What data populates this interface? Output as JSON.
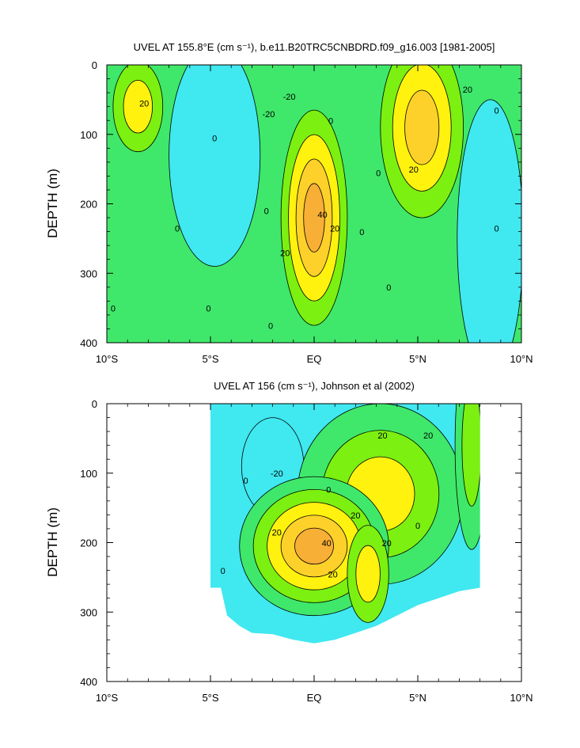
{
  "colors": {
    "level_neg": "#40e8f0",
    "level_zero": "#3fe86a",
    "level_10": "#7cf010",
    "level_20": "#fff20e",
    "level_30": "#fdd12a",
    "level_40": "#f8af36",
    "line": "#000000"
  },
  "chart_data": [
    {
      "type": "contour",
      "title": "UVEL AT 155.8°E (cm s⁻¹), b.e11.B20TRC5CNBDRD.f09_g16.003 [1981-2005]",
      "xlabel": "",
      "ylabel": "DEPTH (m)",
      "x_ticks": [
        "10°S",
        "5°S",
        "EQ",
        "5°N",
        "10°N"
      ],
      "x_tick_values": [
        -10,
        -5,
        0,
        5,
        10
      ],
      "y_ticks": [
        "0",
        "100",
        "200",
        "300",
        "400"
      ],
      "y_tick_values": [
        0,
        100,
        200,
        300,
        400
      ],
      "xlim": [
        -10,
        10
      ],
      "ylim": [
        400,
        0
      ],
      "background_level": "zero",
      "features": [
        {
          "lat": -8.5,
          "depth": 60,
          "dlat": 1.2,
          "ddepth": 65,
          "levels": [
            "10",
            "20"
          ]
        },
        {
          "lat": -4.8,
          "depth": 130,
          "dlat": 2.2,
          "ddepth": 160,
          "levels": [
            "neg"
          ]
        },
        {
          "lat": 0,
          "depth": 220,
          "dlat": 1.6,
          "ddepth": 155,
          "levels": [
            "10",
            "20",
            "30",
            "40"
          ]
        },
        {
          "lat": 5.2,
          "depth": 90,
          "dlat": 2.0,
          "ddepth": 130,
          "levels": [
            "10",
            "20",
            "30"
          ]
        },
        {
          "lat": 8.5,
          "depth": 250,
          "dlat": 1.6,
          "ddepth": 200,
          "levels": [
            "neg"
          ]
        }
      ],
      "contour_labels": [
        {
          "lat": -8.2,
          "depth": 60,
          "text": "20"
        },
        {
          "lat": -4.8,
          "depth": 110,
          "text": "0"
        },
        {
          "lat": -6.6,
          "depth": 240,
          "text": "0"
        },
        {
          "lat": -2.2,
          "depth": 75,
          "text": "-20"
        },
        {
          "lat": -1.2,
          "depth": 50,
          "text": "-20"
        },
        {
          "lat": 0.8,
          "depth": 85,
          "text": "0"
        },
        {
          "lat": -2.3,
          "depth": 215,
          "text": "0"
        },
        {
          "lat": 0.4,
          "depth": 220,
          "text": "40"
        },
        {
          "lat": 1.0,
          "depth": 240,
          "text": "20"
        },
        {
          "lat": -1.4,
          "depth": 275,
          "text": "20"
        },
        {
          "lat": 2.3,
          "depth": 245,
          "text": "0"
        },
        {
          "lat": 3.1,
          "depth": 160,
          "text": "0"
        },
        {
          "lat": 3.6,
          "depth": 325,
          "text": "0"
        },
        {
          "lat": 4.8,
          "depth": 155,
          "text": "20"
        },
        {
          "lat": 7.4,
          "depth": 40,
          "text": "20"
        },
        {
          "lat": 8.8,
          "depth": 70,
          "text": "0"
        },
        {
          "lat": 8.8,
          "depth": 240,
          "text": "0"
        },
        {
          "lat": -9.7,
          "depth": 355,
          "text": "0"
        },
        {
          "lat": -5.1,
          "depth": 355,
          "text": "0"
        },
        {
          "lat": -2.1,
          "depth": 380,
          "text": "0"
        }
      ]
    },
    {
      "type": "contour",
      "title": "UVEL AT 156 (cm s⁻¹), Johnson et al (2002)",
      "xlabel": "",
      "ylabel": "DEPTH (m)",
      "x_ticks": [
        "10°S",
        "5°S",
        "EQ",
        "5°N",
        "10°N"
      ],
      "x_tick_values": [
        -10,
        -5,
        0,
        5,
        10
      ],
      "y_ticks": [
        "0",
        "100",
        "200",
        "300",
        "400"
      ],
      "y_tick_values": [
        0,
        100,
        200,
        300,
        400
      ],
      "xlim": [
        -10,
        10
      ],
      "ylim": [
        400,
        0
      ],
      "data_extent_lat": [
        -5,
        8
      ],
      "data_bottom_profile": [
        [
          -5,
          265
        ],
        [
          -4.5,
          265
        ],
        [
          -4.2,
          305
        ],
        [
          -3.6,
          320
        ],
        [
          -3,
          330
        ],
        [
          -2,
          332
        ],
        [
          -1,
          340
        ],
        [
          0,
          345
        ],
        [
          1,
          340
        ],
        [
          2,
          330
        ],
        [
          3,
          320
        ],
        [
          4,
          305
        ],
        [
          5,
          290
        ],
        [
          6,
          280
        ],
        [
          7,
          270
        ],
        [
          8,
          265
        ]
      ],
      "background_level": "neg",
      "features": [
        {
          "lat": -2.0,
          "depth": 90,
          "dlat": 1.5,
          "ddepth": 70,
          "levels": [
            "neg"
          ]
        },
        {
          "lat": 3.2,
          "depth": 130,
          "dlat": 4.0,
          "ddepth": 130,
          "levels": [
            "zero",
            "10",
            "20"
          ]
        },
        {
          "lat": 0,
          "depth": 205,
          "dlat": 3.6,
          "ddepth": 100,
          "levels": [
            "zero",
            "10",
            "20",
            "30",
            "40"
          ]
        },
        {
          "lat": 2.6,
          "depth": 245,
          "dlat": 1.0,
          "ddepth": 70,
          "levels": [
            "10",
            "20"
          ]
        },
        {
          "lat": 7.6,
          "depth": 60,
          "dlat": 0.8,
          "ddepth": 150,
          "levels": [
            "zero",
            "10"
          ]
        }
      ],
      "contour_labels": [
        {
          "lat": -3.3,
          "depth": 115,
          "text": "0"
        },
        {
          "lat": -1.8,
          "depth": 105,
          "text": "-20"
        },
        {
          "lat": 0.7,
          "depth": 128,
          "text": "0"
        },
        {
          "lat": 3.3,
          "depth": 50,
          "text": "20"
        },
        {
          "lat": 5.5,
          "depth": 50,
          "text": "20"
        },
        {
          "lat": 2.0,
          "depth": 165,
          "text": "20"
        },
        {
          "lat": -1.8,
          "depth": 190,
          "text": "20"
        },
        {
          "lat": 0.6,
          "depth": 205,
          "text": "40"
        },
        {
          "lat": 0.9,
          "depth": 250,
          "text": "20"
        },
        {
          "lat": 3.5,
          "depth": 205,
          "text": "20"
        },
        {
          "lat": 5.0,
          "depth": 180,
          "text": "0"
        },
        {
          "lat": -4.4,
          "depth": 245,
          "text": "0"
        }
      ]
    }
  ]
}
